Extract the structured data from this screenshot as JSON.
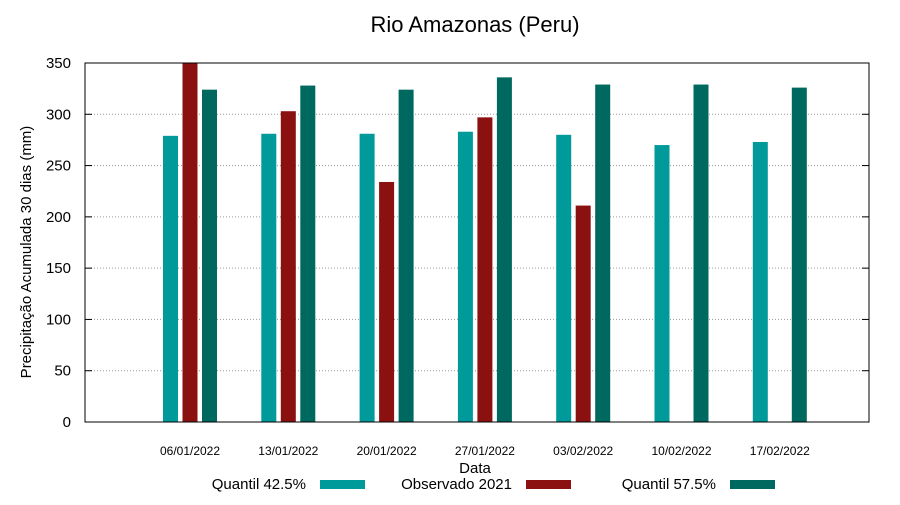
{
  "chart_data": {
    "type": "bar",
    "title": "Rio Amazonas (Peru)",
    "xlabel": "Data",
    "ylabel": "Precipitação Acumulada 30 dias (mm)",
    "ylim": [
      0,
      350
    ],
    "yticks": [
      0,
      50,
      100,
      150,
      200,
      250,
      300,
      350
    ],
    "grid": true,
    "legend_position": "bottom",
    "categories": [
      "06/01/2022",
      "13/01/2022",
      "20/01/2022",
      "27/01/2022",
      "03/02/2022",
      "10/02/2022",
      "17/02/2022"
    ],
    "series": [
      {
        "name": "Quantil 42.5%",
        "color": "#009a9a",
        "values": [
          279,
          281,
          281,
          283,
          280,
          270,
          273
        ]
      },
      {
        "name": "Observado 2021",
        "color": "#8b1010",
        "values": [
          350,
          303,
          234,
          297,
          211,
          null,
          null
        ]
      },
      {
        "name": "Quantil 57.5%",
        "color": "#00695f",
        "values": [
          324,
          328,
          324,
          336,
          329,
          329,
          326
        ]
      }
    ]
  }
}
